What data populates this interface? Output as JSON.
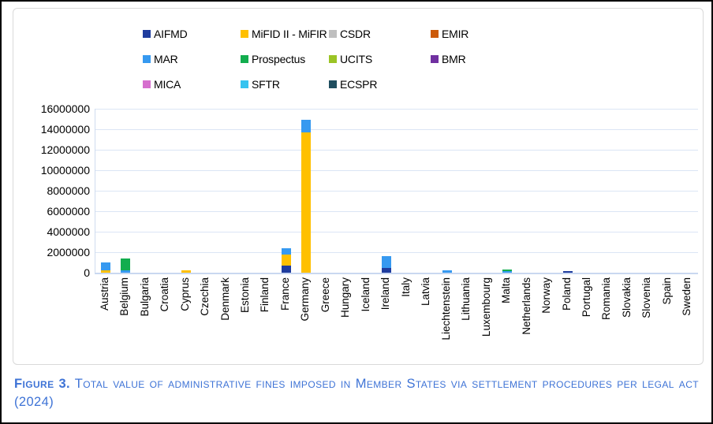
{
  "window": {
    "background": "#ffffff",
    "outer_border_color": "#000000",
    "chart_border_color": "#d9d9d9"
  },
  "axis_style": {
    "gridline_color": "#dbe5f5",
    "axis_line_color": "#c9d8f0"
  },
  "chart_data": {
    "type": "bar",
    "stacked": true,
    "orientation": "vertical",
    "legend_position": "top",
    "grid": "horizontal",
    "ylim": [
      0,
      16000000
    ],
    "yticks": [
      16000000,
      14000000,
      12000000,
      10000000,
      8000000,
      6000000,
      4000000,
      2000000,
      0
    ],
    "xlabel": "",
    "ylabel": "",
    "categories": [
      "Austria",
      "Belgium",
      "Bulgaria",
      "Croatia",
      "Cyprus",
      "Czechia",
      "Denmark",
      "Estonia",
      "Finland",
      "France",
      "Germany",
      "Greece",
      "Hungary",
      "Iceland",
      "Ireland",
      "Italy",
      "Latvia",
      "Liechtenstein",
      "Lithuania",
      "Luxembourg",
      "Malta",
      "Netherlands",
      "Norway",
      "Poland",
      "Portugal",
      "Romania",
      "Slovakia",
      "Slovenia",
      "Spain",
      "Sweden"
    ],
    "series": [
      {
        "name": "AIFMD",
        "color": "#1f3c9e",
        "values": [
          0,
          0,
          0,
          0,
          0,
          0,
          0,
          0,
          0,
          700000,
          0,
          0,
          0,
          0,
          450000,
          0,
          0,
          0,
          0,
          0,
          0,
          0,
          0,
          180000,
          0,
          0,
          0,
          0,
          0,
          0
        ]
      },
      {
        "name": "MiFID II - MiFIR",
        "color": "#ffc000",
        "values": [
          200000,
          0,
          0,
          0,
          200000,
          0,
          0,
          0,
          0,
          1050000,
          13700000,
          0,
          0,
          0,
          0,
          0,
          0,
          0,
          0,
          0,
          0,
          0,
          0,
          0,
          0,
          0,
          0,
          0,
          0,
          0
        ]
      },
      {
        "name": "CSDR",
        "color": "#bfbfbf",
        "values": [
          0,
          0,
          0,
          0,
          0,
          0,
          0,
          0,
          0,
          0,
          0,
          0,
          0,
          0,
          0,
          0,
          0,
          0,
          0,
          0,
          0,
          0,
          0,
          0,
          0,
          0,
          0,
          0,
          0,
          0
        ]
      },
      {
        "name": "EMIR",
        "color": "#cc5a09",
        "values": [
          0,
          0,
          0,
          0,
          0,
          0,
          0,
          0,
          0,
          0,
          0,
          0,
          0,
          0,
          0,
          0,
          0,
          0,
          0,
          0,
          0,
          0,
          0,
          0,
          0,
          0,
          0,
          0,
          0,
          0
        ]
      },
      {
        "name": "MAR",
        "color": "#3699f0",
        "values": [
          780000,
          230000,
          0,
          0,
          0,
          0,
          0,
          0,
          0,
          600000,
          1200000,
          0,
          0,
          0,
          1200000,
          0,
          0,
          200000,
          0,
          0,
          140000,
          0,
          0,
          0,
          0,
          0,
          0,
          0,
          0,
          0
        ]
      },
      {
        "name": "Prospectus",
        "color": "#12ad4e",
        "values": [
          0,
          1120000,
          0,
          0,
          0,
          0,
          0,
          0,
          0,
          0,
          0,
          0,
          0,
          0,
          0,
          0,
          0,
          0,
          0,
          0,
          140000,
          0,
          0,
          0,
          0,
          0,
          0,
          0,
          0,
          0
        ]
      },
      {
        "name": "UCITS",
        "color": "#9bc425",
        "values": [
          0,
          0,
          0,
          0,
          0,
          0,
          0,
          0,
          0,
          0,
          0,
          0,
          0,
          0,
          0,
          0,
          0,
          0,
          0,
          0,
          0,
          0,
          0,
          0,
          0,
          0,
          0,
          0,
          0,
          0
        ]
      },
      {
        "name": "BMR",
        "color": "#7030a0",
        "values": [
          0,
          0,
          0,
          0,
          0,
          0,
          0,
          0,
          0,
          0,
          0,
          0,
          0,
          0,
          0,
          0,
          0,
          0,
          0,
          0,
          0,
          0,
          0,
          0,
          0,
          0,
          0,
          0,
          0,
          0
        ]
      },
      {
        "name": "MICA",
        "color": "#d66fce",
        "values": [
          0,
          0,
          0,
          0,
          0,
          0,
          0,
          0,
          0,
          0,
          0,
          0,
          0,
          0,
          0,
          0,
          0,
          0,
          0,
          0,
          0,
          0,
          0,
          0,
          0,
          0,
          0,
          0,
          0,
          0
        ]
      },
      {
        "name": "SFTR",
        "color": "#35c3f0",
        "values": [
          0,
          0,
          0,
          0,
          0,
          0,
          0,
          0,
          0,
          0,
          0,
          0,
          0,
          0,
          0,
          0,
          0,
          0,
          0,
          0,
          0,
          0,
          0,
          0,
          0,
          0,
          0,
          0,
          0,
          0
        ]
      },
      {
        "name": "ECSPR",
        "color": "#1f4e5f",
        "values": [
          0,
          0,
          0,
          0,
          0,
          0,
          0,
          0,
          0,
          0,
          0,
          0,
          0,
          0,
          0,
          0,
          0,
          0,
          0,
          0,
          0,
          0,
          0,
          0,
          0,
          0,
          0,
          0,
          0,
          0
        ]
      }
    ]
  },
  "caption": {
    "figure_label": "Figure 3.",
    "text": "Total value of administrative fines imposed in Member States via settlement procedures per legal act (2024)",
    "color": "#3e73d6"
  }
}
